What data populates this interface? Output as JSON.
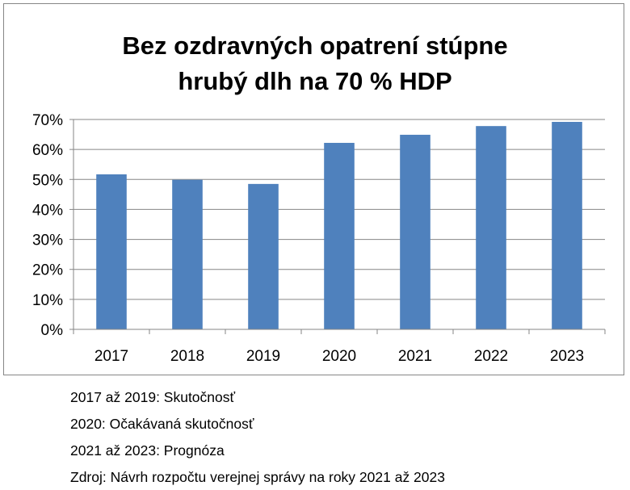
{
  "chart_data": {
    "type": "bar",
    "title_lines": [
      "Bez ozdravných opatrení stúpne",
      "hrubý dlh na 70 % HDP"
    ],
    "categories": [
      "2017",
      "2018",
      "2019",
      "2020",
      "2021",
      "2022",
      "2023"
    ],
    "values": [
      51.7,
      49.9,
      48.5,
      62.2,
      64.9,
      67.8,
      69.2
    ],
    "yticks": [
      "0%",
      "10%",
      "20%",
      "30%",
      "40%",
      "50%",
      "60%",
      "70%"
    ],
    "ylim": [
      0,
      70
    ],
    "grid": true,
    "bar_color": "#4F81BD",
    "grid_color": "#868686"
  },
  "notes": [
    "2017 až 2019: Skutočnosť",
    "2020: Očakávaná skutočnosť",
    "2021 až 2023: Prognóza",
    "Zdroj: Návrh rozpočtu verejnej správy na roky 2021 až 2023"
  ]
}
